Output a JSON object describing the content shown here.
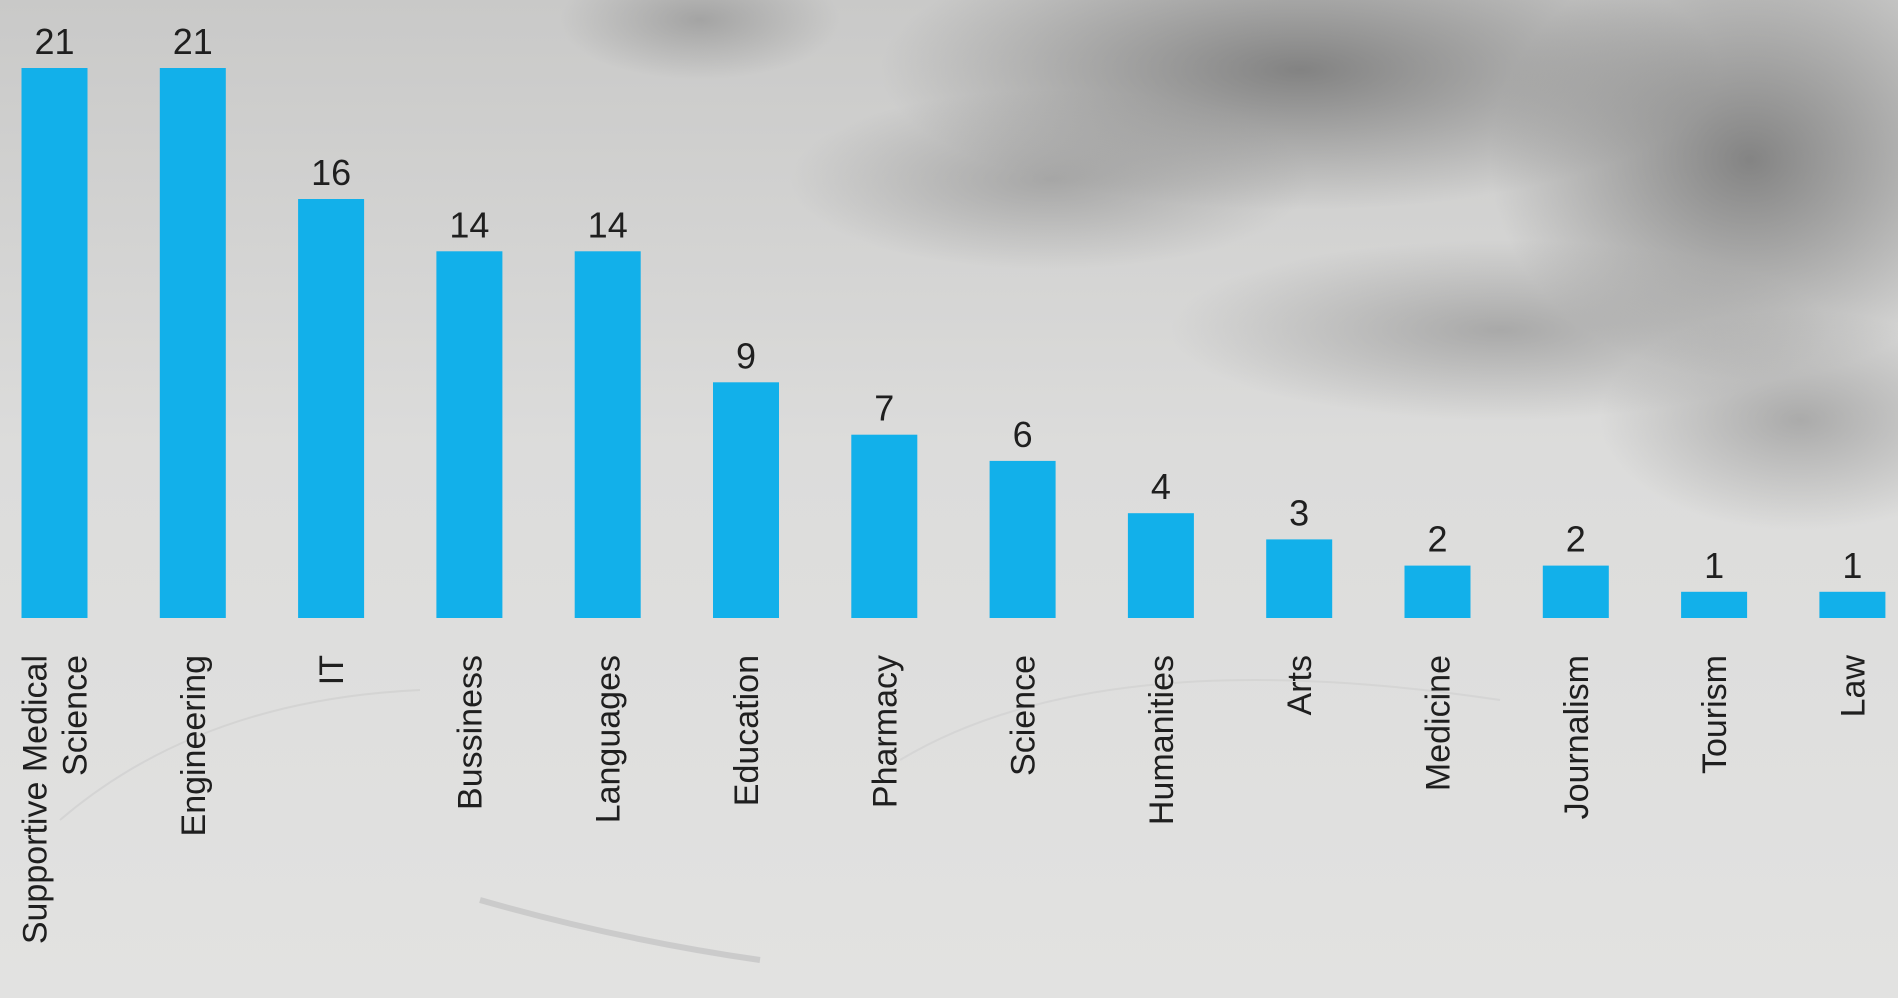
{
  "chart_data": {
    "type": "bar",
    "title": "",
    "xlabel": "",
    "ylabel": "",
    "ylim": [
      0,
      21
    ],
    "grid": false,
    "legend": "none",
    "bar_color": "#12b0ea",
    "categories": [
      "Supportive Medical Science",
      "Engineering",
      "IT",
      "Bussiness",
      "Languages",
      "Education",
      "Pharmacy",
      "Science",
      "Humanities",
      "Arts",
      "Medicine",
      "Journalism",
      "Tourism",
      "Law"
    ],
    "values": [
      21,
      21,
      16,
      14,
      14,
      9,
      7,
      6,
      4,
      3,
      2,
      2,
      1,
      1
    ]
  }
}
